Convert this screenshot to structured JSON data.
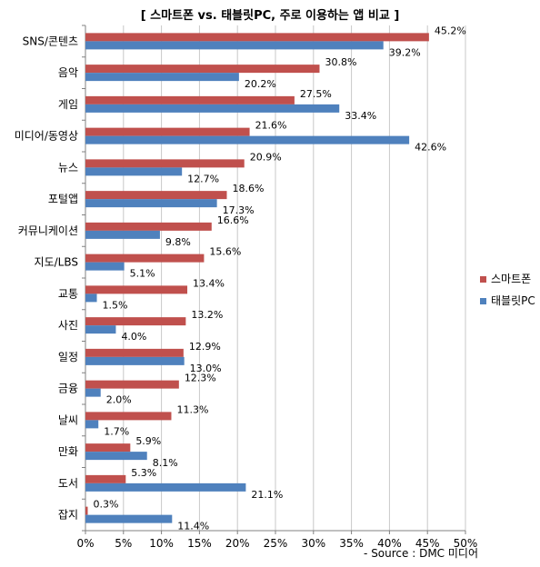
{
  "chart_data": {
    "type": "bar",
    "orientation": "horizontal",
    "title": "[ 스마트폰 vs. 태블릿PC, 주로 이용하는 앱 비교 ]",
    "source": "- Source : DMC 미디어",
    "categories": [
      "SNS/콘텐츠",
      "음악",
      "게임",
      "미디어/동영상",
      "뉴스",
      "포털앱",
      "커뮤니케이션",
      "지도/LBS",
      "교통",
      "사진",
      "일정",
      "금융",
      "날씨",
      "만화",
      "도서",
      "잡지"
    ],
    "series": [
      {
        "name": "스마트폰",
        "color": "#C0504D",
        "values": [
          45.2,
          30.8,
          27.5,
          21.6,
          20.9,
          18.6,
          16.6,
          15.6,
          13.4,
          13.2,
          12.9,
          12.3,
          11.3,
          5.9,
          5.3,
          0.3
        ]
      },
      {
        "name": "태블릿PC",
        "color": "#4F81BD",
        "values": [
          39.2,
          20.2,
          33.4,
          42.6,
          12.7,
          17.3,
          9.8,
          5.1,
          1.5,
          4.0,
          13.0,
          2.0,
          1.7,
          8.1,
          21.1,
          11.4
        ]
      }
    ],
    "x_ticks": [
      "0%",
      "5%",
      "10%",
      "15%",
      "20%",
      "25%",
      "30%",
      "35%",
      "40%",
      "45%",
      "50%"
    ],
    "xlim": [
      0,
      50
    ],
    "value_suffix": "%",
    "grid": true,
    "legend_position": "right"
  }
}
